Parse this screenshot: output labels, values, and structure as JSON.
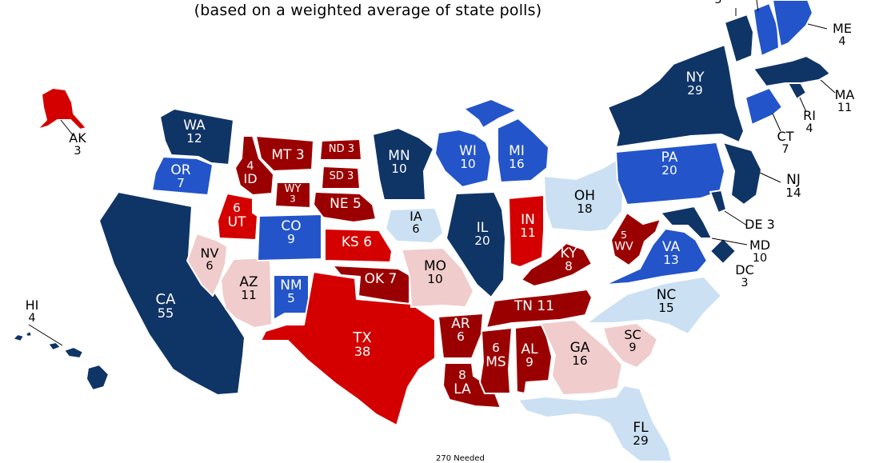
{
  "subtitle": "(based on a weighted average of state polls)",
  "needed_label": "270 Needed",
  "colors": {
    "safe_d": "#0f3466",
    "likely_d": "#2354c9",
    "lean_d": "#cbe0f2",
    "lean_r": "#f0cccc",
    "likely_r": "#d40000",
    "safe_r": "#9b0000"
  },
  "states": {
    "AK": {
      "abbr": "AK",
      "ev": "3",
      "rating": "likely_r"
    },
    "HI": {
      "abbr": "HI",
      "ev": "4",
      "rating": "safe_d"
    },
    "WA": {
      "abbr": "WA",
      "ev": "12",
      "rating": "safe_d"
    },
    "OR": {
      "abbr": "OR",
      "ev": "7",
      "rating": "likely_d"
    },
    "CA": {
      "abbr": "CA",
      "ev": "55",
      "rating": "safe_d"
    },
    "NV": {
      "abbr": "NV",
      "ev": "6",
      "rating": "lean_r"
    },
    "ID": {
      "abbr": "ID",
      "ev": "4",
      "rating": "safe_r"
    },
    "MT": {
      "abbr": "MT",
      "ev": "3",
      "rating": "safe_r"
    },
    "WY": {
      "abbr": "WY",
      "ev": "3",
      "rating": "safe_r"
    },
    "UT": {
      "abbr": "UT",
      "ev": "6",
      "rating": "likely_r"
    },
    "AZ": {
      "abbr": "AZ",
      "ev": "11",
      "rating": "lean_r"
    },
    "CO": {
      "abbr": "CO",
      "ev": "9",
      "rating": "likely_d"
    },
    "NM": {
      "abbr": "NM",
      "ev": "5",
      "rating": "likely_d"
    },
    "ND": {
      "abbr": "ND",
      "ev": "3",
      "rating": "safe_r"
    },
    "SD": {
      "abbr": "SD",
      "ev": "3",
      "rating": "safe_r"
    },
    "NE": {
      "abbr": "NE",
      "ev": "5",
      "rating": "safe_r"
    },
    "KS": {
      "abbr": "KS",
      "ev": "6",
      "rating": "likely_r"
    },
    "OK": {
      "abbr": "OK",
      "ev": "7",
      "rating": "safe_r"
    },
    "TX": {
      "abbr": "TX",
      "ev": "38",
      "rating": "likely_r"
    },
    "MN": {
      "abbr": "MN",
      "ev": "10",
      "rating": "safe_d"
    },
    "IA": {
      "abbr": "IA",
      "ev": "6",
      "rating": "lean_d"
    },
    "MO": {
      "abbr": "MO",
      "ev": "10",
      "rating": "lean_r"
    },
    "AR": {
      "abbr": "AR",
      "ev": "6",
      "rating": "safe_r"
    },
    "LA": {
      "abbr": "LA",
      "ev": "8",
      "rating": "safe_r"
    },
    "WI": {
      "abbr": "WI",
      "ev": "10",
      "rating": "likely_d"
    },
    "IL": {
      "abbr": "IL",
      "ev": "20",
      "rating": "safe_d"
    },
    "MI": {
      "abbr": "MI",
      "ev": "16",
      "rating": "likely_d"
    },
    "IN": {
      "abbr": "IN",
      "ev": "11",
      "rating": "likely_r"
    },
    "OH": {
      "abbr": "OH",
      "ev": "18",
      "rating": "lean_d"
    },
    "KY": {
      "abbr": "KY",
      "ev": "8",
      "rating": "safe_r"
    },
    "TN": {
      "abbr": "TN",
      "ev": "11",
      "rating": "safe_r"
    },
    "MS": {
      "abbr": "MS",
      "ev": "6",
      "rating": "safe_r"
    },
    "AL": {
      "abbr": "AL",
      "ev": "9",
      "rating": "safe_r"
    },
    "GA": {
      "abbr": "GA",
      "ev": "16",
      "rating": "lean_r"
    },
    "FL": {
      "abbr": "FL",
      "ev": "29",
      "rating": "lean_d"
    },
    "SC": {
      "abbr": "SC",
      "ev": "9",
      "rating": "lean_r"
    },
    "NC": {
      "abbr": "NC",
      "ev": "15",
      "rating": "lean_d"
    },
    "VA": {
      "abbr": "VA",
      "ev": "13",
      "rating": "likely_d"
    },
    "WV": {
      "abbr": "WV",
      "ev": "5",
      "rating": "safe_r"
    },
    "PA": {
      "abbr": "PA",
      "ev": "20",
      "rating": "likely_d"
    },
    "NY": {
      "abbr": "NY",
      "ev": "29",
      "rating": "safe_d"
    },
    "NJ": {
      "abbr": "NJ",
      "ev": "14",
      "rating": "safe_d"
    },
    "DE": {
      "abbr": "DE",
      "ev": "3",
      "rating": "safe_d"
    },
    "MD": {
      "abbr": "MD",
      "ev": "10",
      "rating": "safe_d"
    },
    "DC": {
      "abbr": "DC",
      "ev": "3",
      "rating": "safe_d"
    },
    "CT": {
      "abbr": "CT",
      "ev": "7",
      "rating": "likely_d"
    },
    "RI": {
      "abbr": "RI",
      "ev": "4",
      "rating": "safe_d"
    },
    "MA": {
      "abbr": "MA",
      "ev": "11",
      "rating": "safe_d"
    },
    "VT": {
      "abbr": "VT",
      "ev": "3",
      "rating": "safe_d"
    },
    "NH": {
      "abbr": "NH",
      "ev": "",
      "rating": "likely_d"
    },
    "ME": {
      "abbr": "ME",
      "ev": "4",
      "rating": "likely_d"
    }
  }
}
